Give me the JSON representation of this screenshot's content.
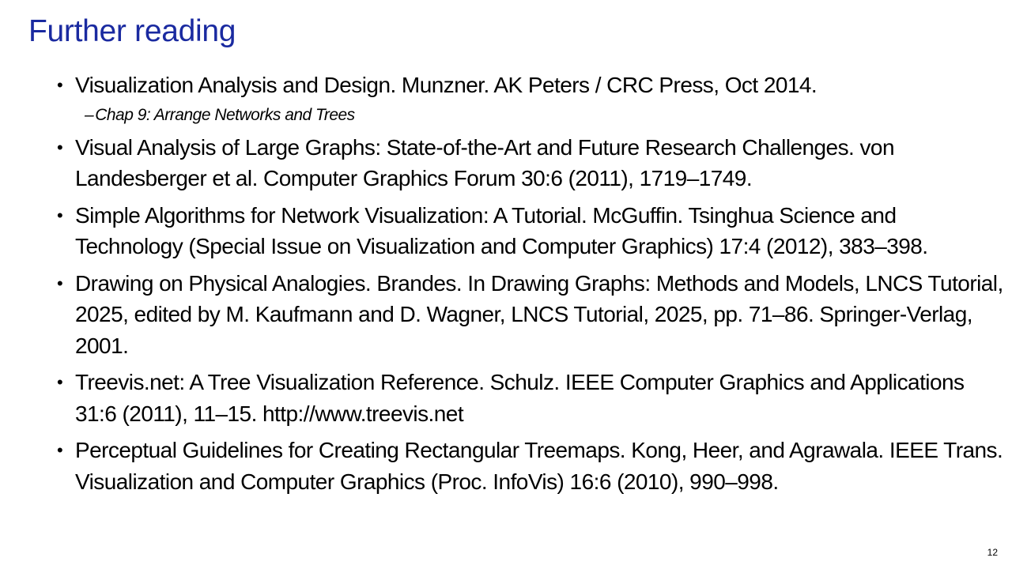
{
  "slide": {
    "title": "Further reading",
    "page_number": "12",
    "colors": {
      "title": "#1a2aa0",
      "text": "#000000",
      "background": "#ffffff"
    },
    "items": [
      {
        "bullet": "•",
        "text": "Visualization Analysis and Design. Munzner.  AK Peters / CRC Press, Oct 2014.",
        "sub_dash": "–",
        "sub_text": "Chap 9: Arrange Networks and Trees"
      },
      {
        "bullet": "•",
        "text": "Visual Analysis of Large Graphs: State-of-the-Art and Future Research Challenges. von Landesberger et al. Computer Graphics Forum 30:6 (2011), 1719–1749."
      },
      {
        "bullet": "•",
        "text": "Simple Algorithms for Network Visualization: A Tutorial. McGuffin. Tsinghua Science and Technology (Special Issue on Visualization and Computer Graphics) 17:4 (2012), 383–398."
      },
      {
        "bullet": "•",
        "text": "Drawing on Physical Analogies. Brandes. In Drawing Graphs: Methods and Models, LNCS Tutorial, 2025, edited by M. Kaufmann and D. Wagner, LNCS Tutorial, 2025, pp. 71–86. Springer-Verlag, 2001."
      },
      {
        "bullet": "•",
        "text": "Treevis.net: A Tree Visualization Reference. Schulz. IEEE Computer Graphics and Applications 31:6 (2011), 11–15. http://www.treevis.net"
      },
      {
        "bullet": "•",
        "text": "Perceptual Guidelines for Creating Rectangular Treemaps. Kong, Heer, and Agrawala. IEEE Trans. Visualization and Computer Graphics (Proc. InfoVis) 16:6 (2010), 990–998."
      }
    ]
  }
}
